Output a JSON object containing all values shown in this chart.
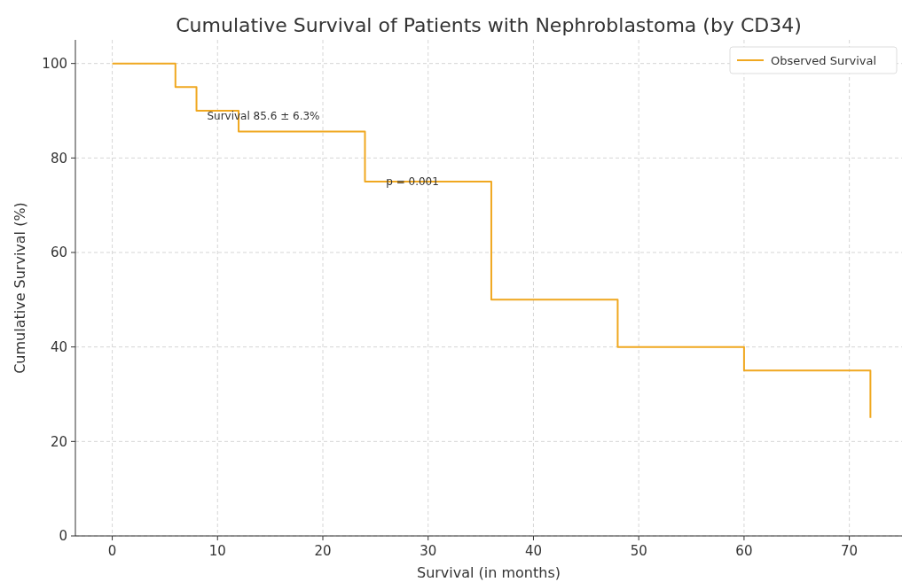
{
  "chart_data": {
    "type": "step",
    "title": "Cumulative Survival of Patients with Nephroblastoma (by CD34)",
    "xlabel": "Survival (in months)",
    "ylabel": "Cumulative Survival (%)",
    "x": [
      0,
      6,
      8,
      12,
      24,
      36,
      48,
      60,
      72
    ],
    "series": [
      {
        "name": "Observed Survival",
        "color": "#f0a820",
        "values": [
          100,
          95,
          90,
          85.6,
          75,
          50,
          40,
          35,
          25
        ]
      }
    ],
    "xlim": [
      -3.5,
      75
    ],
    "xticks": [
      0,
      10,
      20,
      30,
      40,
      50,
      60,
      70
    ],
    "ylim": [
      0,
      105
    ],
    "yticks": [
      0,
      20,
      40,
      60,
      80,
      100
    ],
    "annotations": [
      {
        "text": "Survival 85.6 ± 6.3%",
        "x": 9,
        "y": 88.9
      },
      {
        "text": "p = 0.001",
        "x": 26,
        "y": 75
      }
    ],
    "grid": true,
    "legend": "top right",
    "line_style": "solid"
  }
}
